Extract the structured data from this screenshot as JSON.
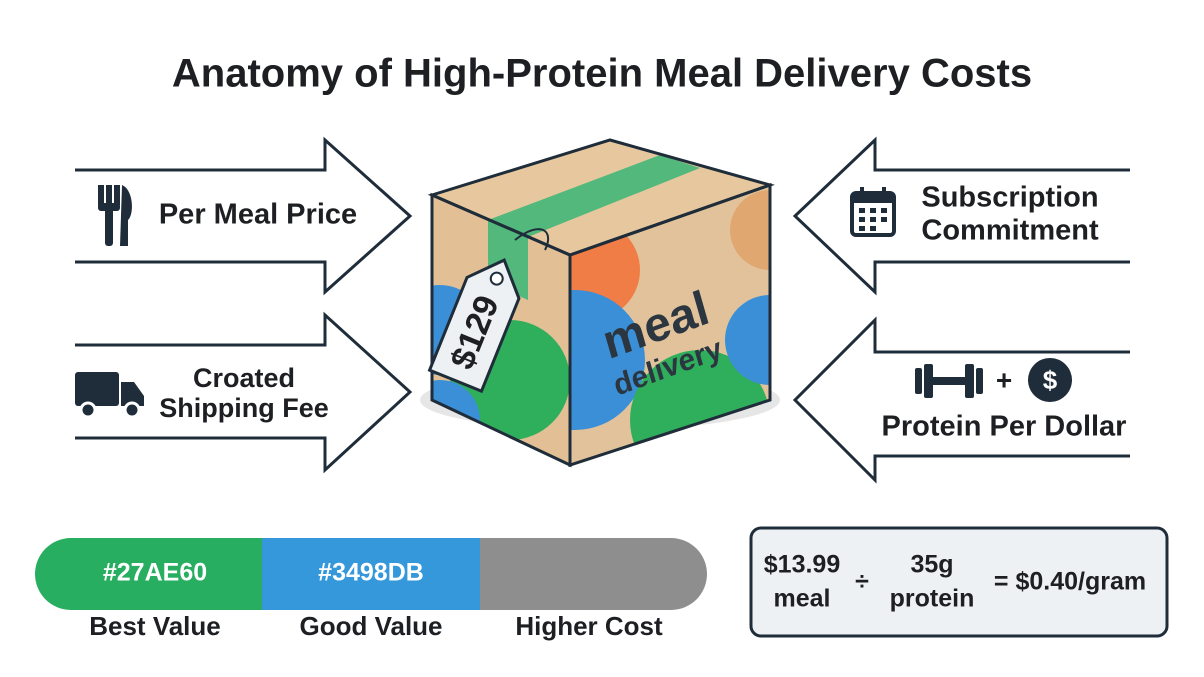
{
  "title": "Anatomy of High-Protein Meal Delivery Costs",
  "factors": [
    {
      "lines": [
        "Per Meal Price"
      ]
    },
    {
      "lines": [
        "Croated",
        "Shipping Fee"
      ]
    },
    {
      "lines": [
        "Subscription",
        "Commitment"
      ]
    },
    {
      "lines": [
        "+",
        "Protein Per Dollar"
      ]
    }
  ],
  "box": {
    "tag": "$129",
    "lines": [
      "meal",
      "delivery"
    ]
  },
  "scale": {
    "segments": [
      {
        "label": "#27AE60",
        "color": "#27AE60",
        "caption": "Best Value"
      },
      {
        "label": "#3498DB",
        "color": "#3498DB",
        "caption": "Good Value"
      },
      {
        "color": "#8e8e8e",
        "caption": "Higher Cost"
      }
    ]
  },
  "formula": {
    "price": "$13.99",
    "price_unit": "meal",
    "operator": "÷",
    "protein": "35g",
    "protein_unit": "protein",
    "result": "= $0.40/gram"
  }
}
